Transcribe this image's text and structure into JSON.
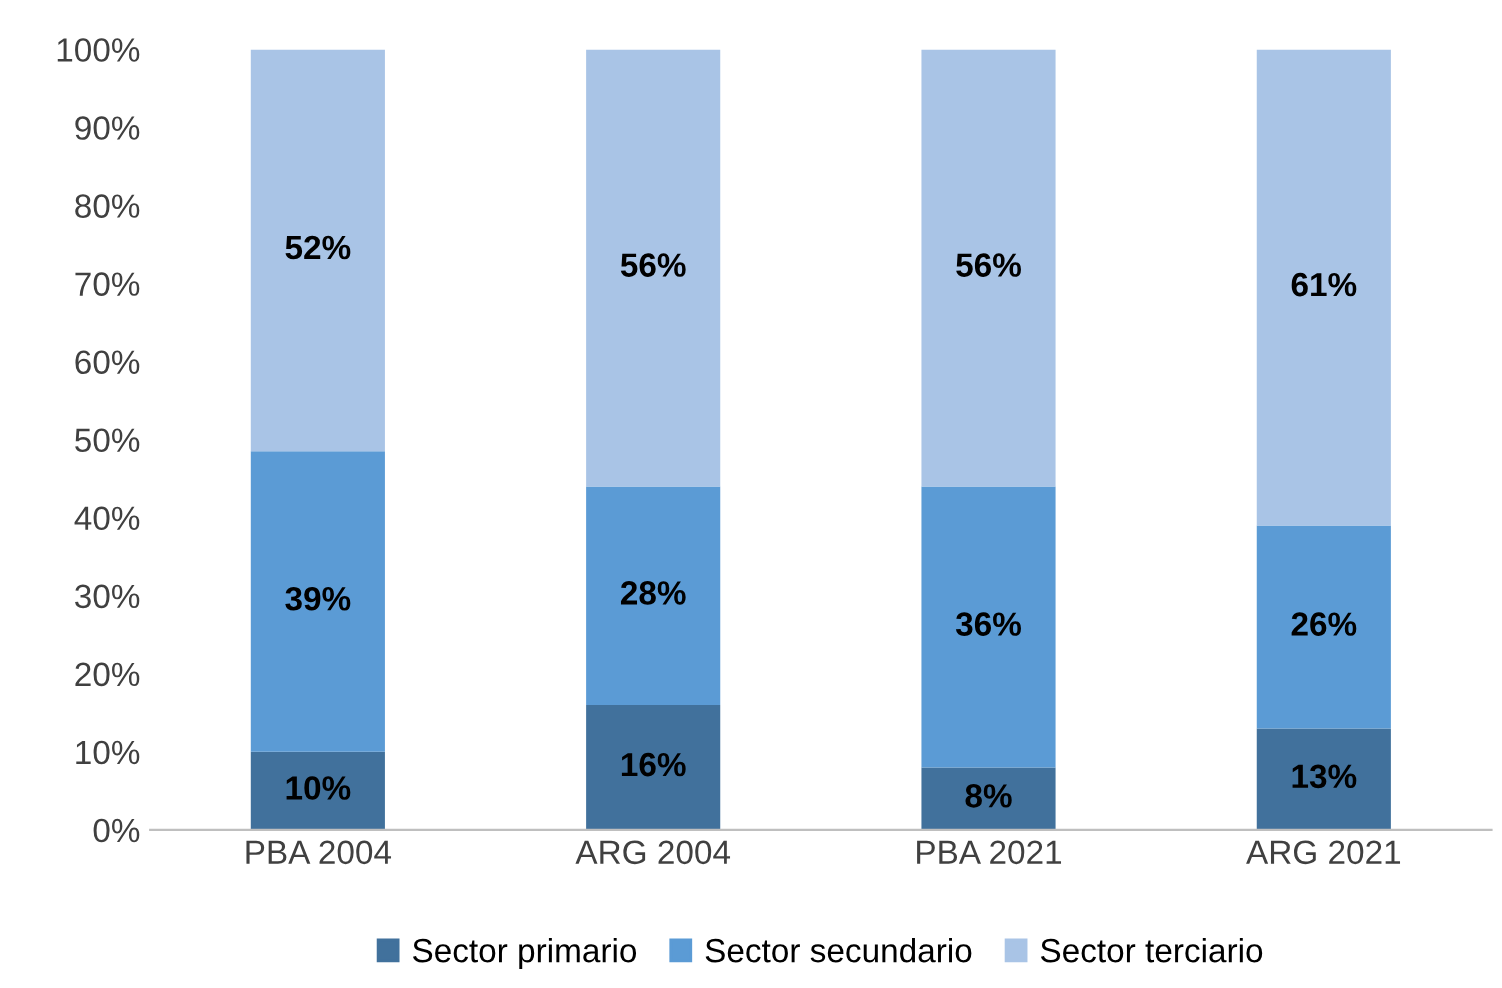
{
  "chart_data": {
    "type": "bar",
    "stacked": true,
    "categories": [
      "PBA 2004",
      "ARG 2004",
      "PBA 2021",
      "ARG 2021"
    ],
    "series": [
      {
        "name": "Sector primario",
        "color": "#41719c",
        "values": [
          10,
          16,
          8,
          13
        ],
        "value_labels": [
          "10%",
          "16%",
          "8%",
          "13%"
        ]
      },
      {
        "name": "Sector secundario",
        "color": "#5b9bd5",
        "values": [
          38.5,
          28,
          36,
          26
        ],
        "value_labels": [
          "39%",
          "28%",
          "36%",
          "26%"
        ]
      },
      {
        "name": "Sector terciario",
        "color": "#a9c4e6",
        "values": [
          51.5,
          56,
          56,
          61
        ],
        "value_labels": [
          "52%",
          "56%",
          "56%",
          "61%"
        ]
      }
    ],
    "ylim": [
      0,
      100
    ],
    "yticks": [
      {
        "value": 0,
        "label": "0%"
      },
      {
        "value": 10,
        "label": "10%"
      },
      {
        "value": 20,
        "label": "20%"
      },
      {
        "value": 30,
        "label": "30%"
      },
      {
        "value": 40,
        "label": "40%"
      },
      {
        "value": 50,
        "label": "50%"
      },
      {
        "value": 60,
        "label": "60%"
      },
      {
        "value": 70,
        "label": "70%"
      },
      {
        "value": 80,
        "label": "80%"
      },
      {
        "value": 90,
        "label": "90%"
      },
      {
        "value": 100,
        "label": "100%"
      }
    ],
    "grid": false,
    "legend": "bottom"
  }
}
